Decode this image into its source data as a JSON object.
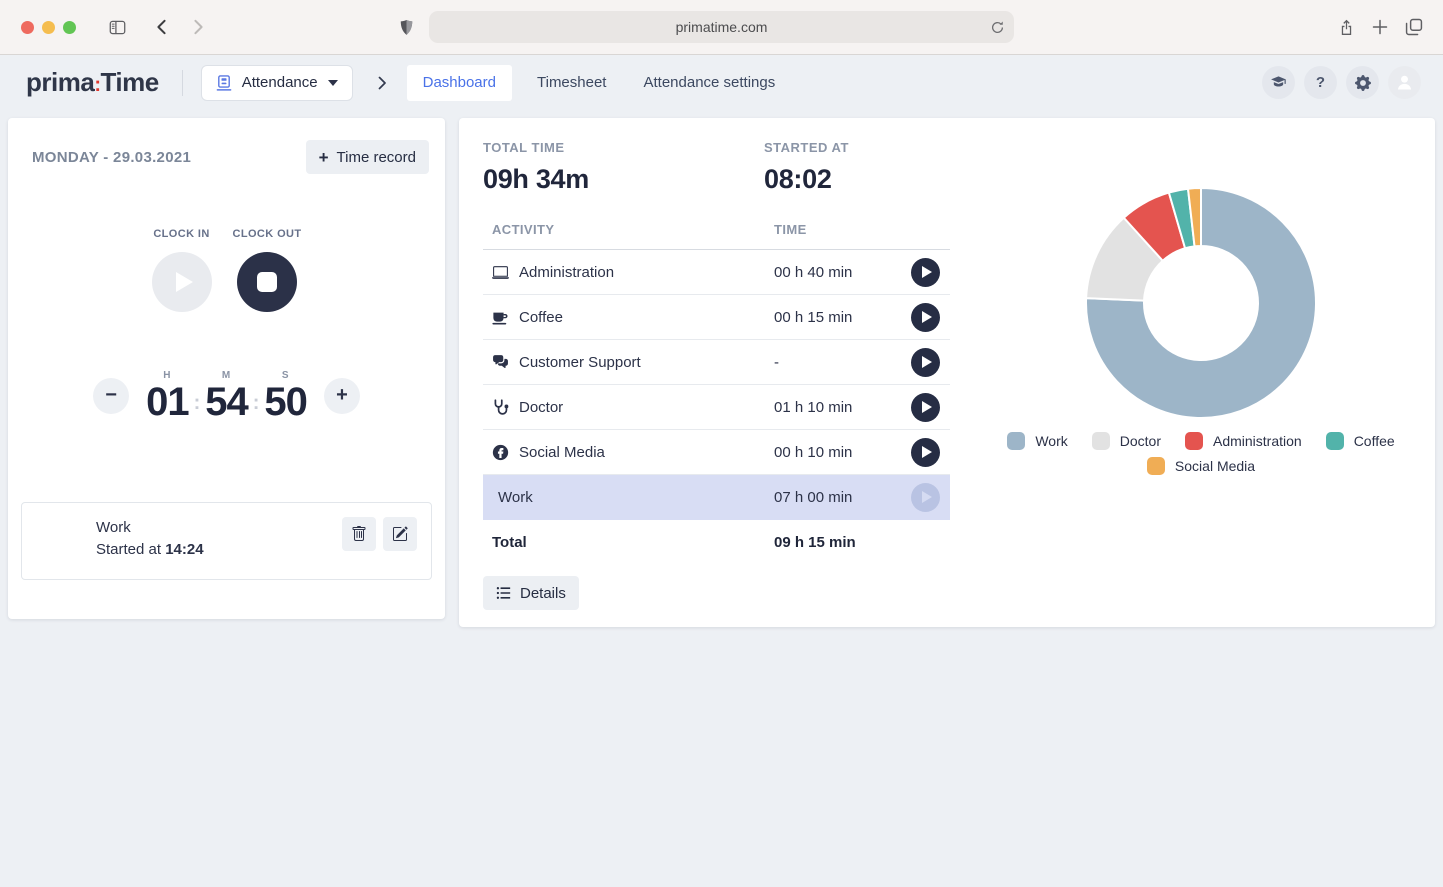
{
  "browser": {
    "url": "primatime.com",
    "window_controls": [
      "close",
      "minimize",
      "zoom"
    ],
    "traffic_colors": {
      "close": "#ee6a5f",
      "minimize": "#f5bd4f",
      "zoom": "#62c554"
    },
    "icons": [
      "sidebar-icon",
      "back-icon",
      "forward-icon",
      "shield-icon",
      "reload-icon",
      "share-icon",
      "new-tab-icon",
      "tab-overview-icon"
    ]
  },
  "header": {
    "logo": {
      "prima": "prima",
      "colon": ":",
      "time": "Time"
    },
    "module_button": {
      "label": "Attendance",
      "icon": "punch-clock-icon"
    },
    "tabs": [
      {
        "label": "Dashboard",
        "active": true
      },
      {
        "label": "Timesheet",
        "active": false
      },
      {
        "label": "Attendance settings",
        "active": false
      }
    ],
    "icon_buttons": [
      "academy-icon",
      "help-icon",
      "settings-icon",
      "avatar"
    ]
  },
  "left_card": {
    "date_title": "MONDAY - 29.03.2021",
    "time_record_button": {
      "plus": "+",
      "label": "Time record"
    },
    "clock_in_label": "CLOCK IN",
    "clock_out_label": "CLOCK OUT",
    "stepper": {
      "h": "H",
      "m": "M",
      "s": "S",
      "hours": "01",
      "minutes": "54",
      "seconds": "50",
      "colon": ":",
      "minus": "−",
      "plus": "+"
    },
    "running_entry": {
      "activity": "Work",
      "started_prefix": "Started at",
      "started_time": "14:24",
      "actions": [
        "delete-icon",
        "edit-icon"
      ]
    }
  },
  "summary_card": {
    "total_time_label": "TOTAL TIME",
    "total_time_value": "09h 34m",
    "started_at_label": "STARTED AT",
    "started_at_value": "08:02",
    "table": {
      "col_activity": "ACTIVITY",
      "col_time": "TIME",
      "rows": [
        {
          "icon": "laptop-icon",
          "activity": "Administration",
          "time": "00 h 40 min",
          "highlight": false,
          "play_disabled": false
        },
        {
          "icon": "coffee-icon",
          "activity": "Coffee",
          "time": "00 h 15 min",
          "highlight": false,
          "play_disabled": false
        },
        {
          "icon": "chat-icon",
          "activity": "Customer Support",
          "time": "-",
          "highlight": false,
          "play_disabled": false
        },
        {
          "icon": "stethoscope-icon",
          "activity": "Doctor",
          "time": "01 h 10 min",
          "highlight": false,
          "play_disabled": false
        },
        {
          "icon": "facebook-icon",
          "activity": "Social Media",
          "time": "00 h 10 min",
          "highlight": false,
          "play_disabled": false
        },
        {
          "icon": null,
          "activity": "Work",
          "time": "07 h 00 min",
          "highlight": true,
          "play_disabled": true
        }
      ],
      "total_label": "Total",
      "total_value": "09 h 15 min"
    },
    "details_button": {
      "label": "Details",
      "icon": "list-icon"
    }
  },
  "chart_data": {
    "type": "pie",
    "donut": true,
    "start_angle": "top",
    "direction": "clockwise",
    "series": [
      {
        "name": "Work",
        "minutes": 420,
        "time_label": "07 h 00 min",
        "fraction": 0.757,
        "color": "#9db5c8"
      },
      {
        "name": "Doctor",
        "minutes": 70,
        "time_label": "01 h 10 min",
        "fraction": 0.126,
        "color": "#e2e2e2"
      },
      {
        "name": "Administration",
        "minutes": 40,
        "time_label": "00 h 40 min",
        "fraction": 0.072,
        "color": "#e4544f"
      },
      {
        "name": "Coffee",
        "minutes": 15,
        "time_label": "00 h 15 min",
        "fraction": 0.027,
        "color": "#52b3aa"
      },
      {
        "name": "Social Media",
        "minutes": 10,
        "time_label": "00 h 10 min",
        "fraction": 0.018,
        "color": "#f0ad55"
      }
    ],
    "legend_rows": [
      [
        "Work",
        "Doctor",
        "Administration",
        "Coffee"
      ],
      [
        "Social Media"
      ]
    ],
    "legend_position": "bottom"
  },
  "colors": {
    "accent_blue": "#4a72e8",
    "dark_navy": "#2b3148",
    "logo_red": "#e0392f",
    "highlight_row": "#d8ddf4",
    "page_bg": "#edf0f4"
  }
}
